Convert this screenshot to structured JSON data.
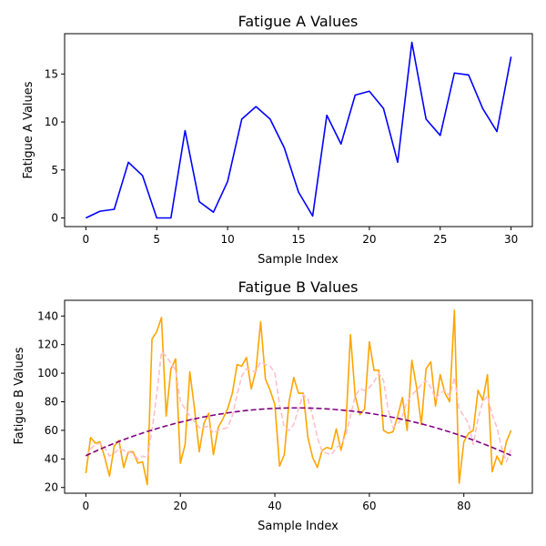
{
  "chart_data": [
    {
      "type": "line",
      "title": "Fatigue A Values",
      "xlabel": "Sample Index",
      "ylabel": "Fatigue A Values",
      "xlim": [
        -1.5,
        31.5
      ],
      "ylim": [
        -0.9,
        19.2
      ],
      "xticks": [
        0,
        5,
        10,
        15,
        20,
        25,
        30
      ],
      "yticks": [
        0,
        5,
        10,
        15
      ],
      "grid": false,
      "series": [
        {
          "color": "#0000ff",
          "style": "solid",
          "x": [
            0,
            1,
            2,
            3,
            4,
            5,
            6,
            7,
            8,
            9,
            10,
            11,
            12,
            13,
            14,
            15,
            16,
            17,
            18,
            19,
            20,
            21,
            22,
            23,
            24,
            25,
            26,
            27,
            28,
            29,
            30
          ],
          "values": [
            0.0,
            0.7,
            0.9,
            5.8,
            4.4,
            0.0,
            0.0,
            9.1,
            1.7,
            0.6,
            3.8,
            10.3,
            11.6,
            10.3,
            7.3,
            2.7,
            0.2,
            10.7,
            7.7,
            12.8,
            13.2,
            11.4,
            5.8,
            18.3,
            10.3,
            8.6,
            15.1,
            14.9,
            11.4,
            9.0,
            16.8
          ]
        }
      ]
    },
    {
      "type": "line",
      "title": "Fatigue B Values",
      "xlabel": "Sample Index",
      "ylabel": "Fatigue B Values",
      "xlim": [
        -4.5,
        94.5
      ],
      "ylim": [
        16.0,
        151.0
      ],
      "xticks": [
        0,
        20,
        40,
        60,
        80
      ],
      "yticks": [
        20,
        40,
        60,
        80,
        100,
        120,
        140
      ],
      "grid": false,
      "series": [
        {
          "color": "#ffa500",
          "style": "solid",
          "x": [
            0,
            1,
            2,
            3,
            4,
            5,
            6,
            7,
            8,
            9,
            10,
            11,
            12,
            13,
            14,
            15,
            16,
            17,
            18,
            19,
            20,
            21,
            22,
            23,
            24,
            25,
            26,
            27,
            28,
            29,
            30,
            31,
            32,
            33,
            34,
            35,
            36,
            37,
            38,
            39,
            40,
            41,
            42,
            43,
            44,
            45,
            46,
            47,
            48,
            49,
            50,
            51,
            52,
            53,
            54,
            55,
            56,
            57,
            58,
            59,
            60,
            61,
            62,
            63,
            64,
            65,
            66,
            67,
            68,
            69,
            70,
            71,
            72,
            73,
            74,
            75,
            76,
            77,
            78,
            79,
            80,
            81,
            82,
            83,
            84,
            85,
            86,
            87,
            88,
            89,
            90
          ],
          "values": [
            30,
            55,
            51,
            52,
            41,
            28,
            49,
            53,
            34,
            45,
            45,
            37,
            38,
            22,
            124,
            129,
            139,
            70,
            103,
            110,
            37,
            50,
            101,
            75,
            45,
            65,
            72,
            43,
            62,
            68,
            75,
            86,
            106,
            105,
            111,
            89,
            102,
            136,
            96,
            88,
            78,
            35,
            43,
            80,
            97,
            86,
            86,
            55,
            41,
            34,
            46,
            48,
            47,
            61,
            46,
            61,
            127,
            84,
            71,
            75,
            122,
            102,
            102,
            60,
            58,
            59,
            70,
            83,
            60,
            109,
            90,
            64,
            103,
            108,
            77,
            99,
            86,
            80,
            144,
            23,
            52,
            58,
            60,
            88,
            81,
            99,
            31,
            42,
            36,
            52,
            60
          ]
        },
        {
          "color": "#ffc0cb",
          "style": "dashed",
          "x": [
            0,
            1,
            2,
            3,
            4,
            5,
            6,
            7,
            8,
            9,
            10,
            11,
            12,
            13,
            14,
            15,
            16,
            17,
            18,
            19,
            20,
            21,
            22,
            23,
            24,
            25,
            26,
            27,
            28,
            29,
            30,
            31,
            32,
            33,
            34,
            35,
            36,
            37,
            38,
            39,
            40,
            41,
            42,
            43,
            44,
            45,
            46,
            47,
            48,
            49,
            50,
            51,
            52,
            53,
            54,
            55,
            56,
            57,
            58,
            59,
            60,
            61,
            62,
            63,
            64,
            65,
            66,
            67,
            68,
            69,
            70,
            71,
            72,
            73,
            74,
            75,
            76,
            77,
            78,
            79,
            80,
            81,
            82,
            83,
            84,
            85,
            86,
            87,
            88,
            89,
            90
          ],
          "values": [
            42,
            47,
            50,
            51,
            48,
            42,
            44,
            47,
            46,
            45,
            44,
            40,
            42,
            41,
            60,
            85,
            115,
            112,
            107,
            102,
            80,
            75,
            70,
            66,
            62,
            62,
            63,
            58,
            60,
            61,
            62,
            70,
            85,
            98,
            103,
            102,
            101,
            108,
            106,
            105,
            100,
            78,
            62,
            60,
            64,
            75,
            85,
            82,
            70,
            55,
            45,
            44,
            43,
            48,
            50,
            56,
            70,
            84,
            89,
            88,
            90,
            94,
            100,
            95,
            74,
            62,
            64,
            70,
            80,
            85,
            88,
            92,
            95,
            90,
            82,
            86,
            88,
            84,
            97,
            75,
            70,
            65,
            50,
            68,
            80,
            84,
            71,
            62,
            48,
            38,
            47
          ]
        },
        {
          "color": "#800080",
          "style": "dashed",
          "x": [
            0,
            1,
            2,
            3,
            4,
            5,
            6,
            7,
            8,
            9,
            10,
            11,
            12,
            13,
            14,
            15,
            16,
            17,
            18,
            19,
            20,
            21,
            22,
            23,
            24,
            25,
            26,
            27,
            28,
            29,
            30,
            31,
            32,
            33,
            34,
            35,
            36,
            37,
            38,
            39,
            40,
            41,
            42,
            43,
            44,
            45,
            46,
            47,
            48,
            49,
            50,
            51,
            52,
            53,
            54,
            55,
            56,
            57,
            58,
            59,
            60,
            61,
            62,
            63,
            64,
            65,
            66,
            67,
            68,
            69,
            70,
            71,
            72,
            73,
            74,
            75,
            76,
            77,
            78,
            79,
            80,
            81,
            82,
            83,
            84,
            85,
            86,
            87,
            88,
            89,
            90
          ],
          "values": [
            42.2,
            43.8,
            45.3,
            46.8,
            48.2,
            49.6,
            50.9,
            52.2,
            53.5,
            54.7,
            55.9,
            57.0,
            58.1,
            59.2,
            60.2,
            61.2,
            62.2,
            63.1,
            64.0,
            64.9,
            65.7,
            66.5,
            67.3,
            68.0,
            68.7,
            69.4,
            70.0,
            70.6,
            71.2,
            71.7,
            72.2,
            72.7,
            73.1,
            73.5,
            73.9,
            74.2,
            74.5,
            74.8,
            75.0,
            75.2,
            75.4,
            75.5,
            75.6,
            75.7,
            75.7,
            75.7,
            75.7,
            75.6,
            75.5,
            75.4,
            75.2,
            75.0,
            74.8,
            74.5,
            74.2,
            73.9,
            73.6,
            73.2,
            72.8,
            72.4,
            71.9,
            71.4,
            70.9,
            70.3,
            69.7,
            69.1,
            68.4,
            67.7,
            67.0,
            66.2,
            65.4,
            64.6,
            63.7,
            62.8,
            61.9,
            60.9,
            59.9,
            58.9,
            57.8,
            56.7,
            55.6,
            54.4,
            53.2,
            52.0,
            50.7,
            49.4,
            48.1,
            46.7,
            45.3,
            43.9,
            42.4
          ]
        }
      ]
    }
  ]
}
